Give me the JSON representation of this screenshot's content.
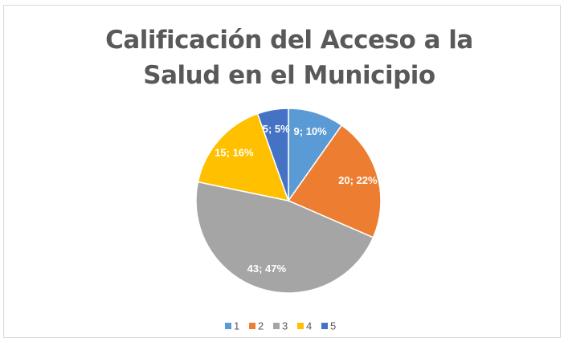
{
  "chart_data": {
    "type": "pie",
    "title": "Calificación del Acceso a la Salud en el Municipio",
    "categories": [
      "1",
      "2",
      "3",
      "4",
      "5"
    ],
    "values": [
      9,
      20,
      43,
      15,
      5
    ],
    "value_labels": [
      "9; 10%",
      "20; 22%",
      "43; 47%",
      "15; 16%",
      "5; 5%"
    ],
    "colors": [
      "#5b9bd5",
      "#ed7d31",
      "#a5a5a5",
      "#ffc000",
      "#4472c4"
    ],
    "legend": "bottom"
  }
}
